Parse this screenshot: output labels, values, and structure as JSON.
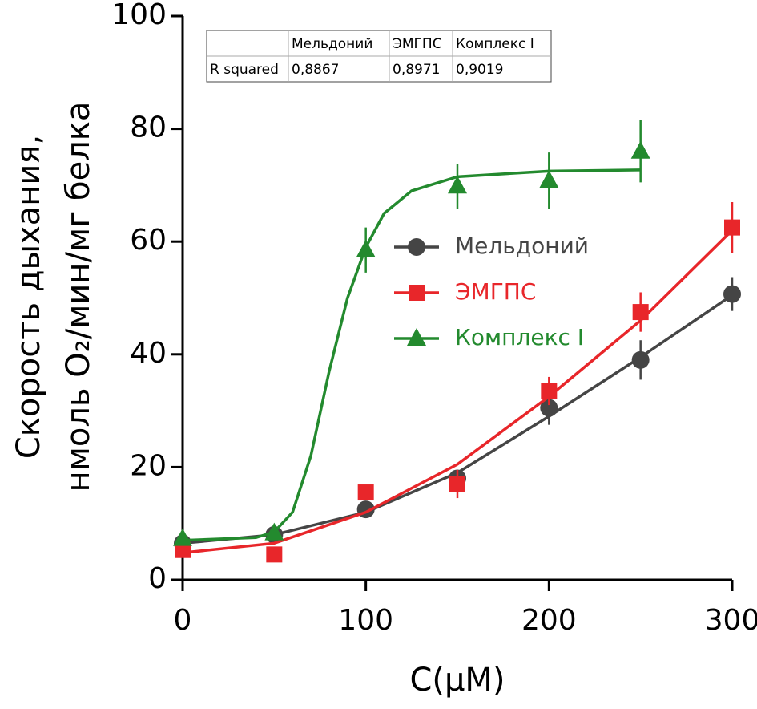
{
  "chart_data": {
    "type": "scatter",
    "ylabel": [
      "Скорость дыхания,",
      "нмоль O₂/мин/мг белка"
    ],
    "xlabel": "C(μM)",
    "xlim": [
      0,
      300
    ],
    "xticks": [
      0,
      100,
      200,
      300
    ],
    "ylim": [
      0,
      100
    ],
    "yticks": [
      0,
      20,
      40,
      60,
      80,
      100
    ],
    "legend": "right",
    "series": [
      {
        "name": "Мельдоний",
        "color": "#454545",
        "marker": "circle",
        "x": [
          0,
          50,
          100,
          150,
          200,
          250,
          300
        ],
        "values": [
          6.5,
          8,
          12.5,
          18,
          30.5,
          39,
          50.7
        ],
        "errors": [
          1,
          1,
          1,
          1.5,
          3,
          3.5,
          3
        ],
        "fit": {
          "x": [
            0,
            50,
            100,
            150,
            200,
            250,
            300
          ],
          "y": [
            6.5,
            8,
            12,
            19,
            29,
            39.5,
            50.5
          ]
        }
      },
      {
        "name": "ЭМГПС",
        "color": "#e8262a",
        "marker": "square",
        "x": [
          0,
          50,
          100,
          150,
          200,
          250,
          300
        ],
        "values": [
          5.3,
          4.5,
          15.5,
          17,
          33.5,
          47.5,
          62.5
        ],
        "errors": [
          0.5,
          0.5,
          1,
          2.5,
          2.5,
          3.5,
          4.5
        ],
        "fit": {
          "x": [
            0,
            50,
            100,
            150,
            200,
            250,
            300
          ],
          "y": [
            4.8,
            6.5,
            12,
            20.5,
            32.5,
            46,
            62
          ]
        }
      },
      {
        "name": "Комплекс I",
        "color": "#238a2e",
        "marker": "triangle",
        "x": [
          0,
          50,
          100,
          150,
          200,
          250
        ],
        "values": [
          7.3,
          8.3,
          58.5,
          69.8,
          70.8,
          76
        ],
        "errors": [
          0.5,
          0.5,
          4,
          4,
          5,
          5.5
        ],
        "fit": {
          "x": [
            0,
            40,
            50,
            60,
            70,
            80,
            90,
            100,
            110,
            125,
            150,
            200,
            250
          ],
          "y": [
            7,
            7.5,
            8.5,
            12,
            22,
            37,
            50,
            59,
            65,
            69,
            71.5,
            72.5,
            72.7
          ]
        }
      }
    ],
    "table": {
      "columns": [
        "Мельдоний",
        "ЭМГПС",
        "Комплекс I"
      ],
      "rows": [
        [
          "R squared",
          "0,8867",
          "0,8971",
          "0,9019"
        ]
      ]
    }
  }
}
